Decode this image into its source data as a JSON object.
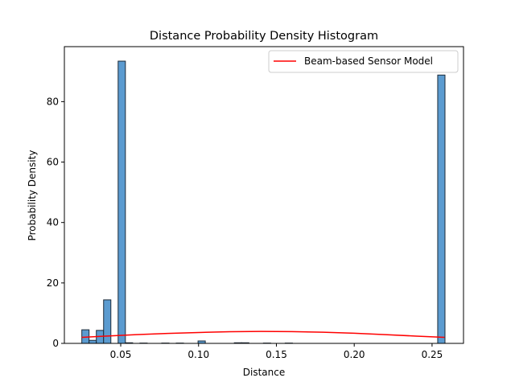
{
  "chart_data": {
    "type": "bar",
    "title": "Distance Probability Density Histogram",
    "xlabel": "Distance",
    "ylabel": "Probability Density",
    "xlim": [
      0.0138,
      0.2702
    ],
    "ylim": [
      0,
      98.2
    ],
    "xticks": [
      {
        "value": 0.05,
        "label": "0.05"
      },
      {
        "value": 0.1,
        "label": "0.10"
      },
      {
        "value": 0.15,
        "label": "0.15"
      },
      {
        "value": 0.2,
        "label": "0.20"
      },
      {
        "value": 0.25,
        "label": "0.25"
      }
    ],
    "yticks": [
      {
        "value": 0,
        "label": "0"
      },
      {
        "value": 20,
        "label": "20"
      },
      {
        "value": 40,
        "label": "40"
      },
      {
        "value": 60,
        "label": "60"
      },
      {
        "value": 80,
        "label": "80"
      }
    ],
    "bins": {
      "start": 0.025,
      "width": 0.004666,
      "count": 50
    },
    "hist_values": [
      4.5,
      1.0,
      4.3,
      14.4,
      0.0,
      93.4,
      0.2,
      0.0,
      0.1,
      0.0,
      0.0,
      0.1,
      0.0,
      0.1,
      0.0,
      0.0,
      0.8,
      0.0,
      0.0,
      0.0,
      0.0,
      0.2,
      0.2,
      0.0,
      0.0,
      0.1,
      0.0,
      0.0,
      0.1,
      0.0,
      0.0,
      0.0,
      0.0,
      0.0,
      0.0,
      0.0,
      0.0,
      0.0,
      0.0,
      0.0,
      0.0,
      0.0,
      0.0,
      0.0,
      0.0,
      0.0,
      0.0,
      0.0,
      0.0,
      88.8
    ],
    "hist_color": "#5b9bd0",
    "hist_edge": "#1c2a38",
    "series": [
      {
        "name": "Beam-based Sensor Model",
        "color": "#ff0000",
        "x": [
          0.025,
          0.04,
          0.06,
          0.08,
          0.1,
          0.12,
          0.14,
          0.16,
          0.18,
          0.2,
          0.22,
          0.24,
          0.258
        ],
        "y": [
          2.0,
          2.4,
          2.9,
          3.3,
          3.6,
          3.85,
          3.95,
          3.9,
          3.7,
          3.35,
          2.9,
          2.4,
          2.0
        ]
      }
    ],
    "legend_position": "top-right"
  }
}
